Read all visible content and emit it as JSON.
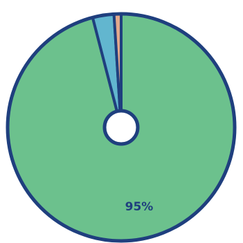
{
  "chart_data": {
    "type": "pie",
    "donut": true,
    "start": "top",
    "direction": "clockwise",
    "slices": [
      {
        "value": 95,
        "color": "#6cc18d",
        "label": "95%"
      },
      {
        "value": 3,
        "color": "#62b6cf",
        "label": ""
      },
      {
        "value": 1,
        "color": "#e3a98c",
        "label": ""
      }
    ],
    "outline_color": "#1f3f7e",
    "label_color": "#1f3f7e",
    "background": "#ffffff"
  }
}
